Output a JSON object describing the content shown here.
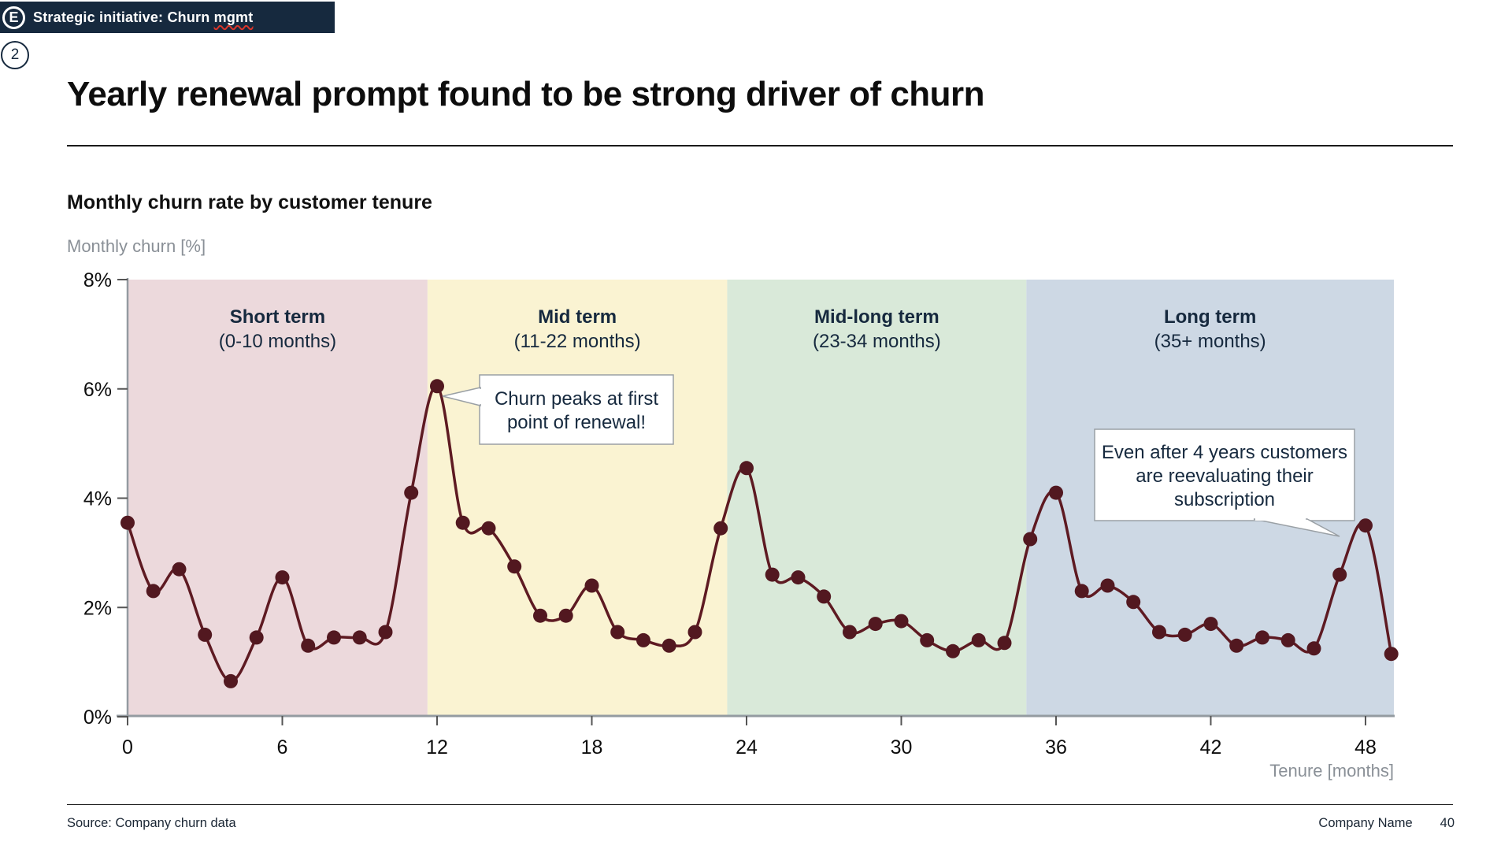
{
  "header": {
    "tab_icon_letter": "E",
    "tab_label_prefix": "Strategic initiative: Churn ",
    "tab_label_misspelled": "mgmt",
    "page_circle": "2"
  },
  "title": "Yearly renewal prompt found to be strong driver of churn",
  "chart_heading": "Monthly churn rate by customer tenure",
  "chart_data": {
    "type": "line",
    "title": "Monthly churn rate by customer tenure",
    "ylabel": "Monthly churn [%]",
    "xlabel": "Tenure [months]",
    "ylim": [
      0,
      8
    ],
    "xlim": [
      0,
      49.1
    ],
    "yticks": [
      0,
      2,
      4,
      6,
      8
    ],
    "ytick_suffix": "%",
    "xticks": [
      0,
      6,
      12,
      18,
      24,
      30,
      36,
      42,
      48
    ],
    "grid": false,
    "legend": false,
    "line_color": "#5e1a22",
    "marker_color": "#521820",
    "series": [
      {
        "name": "Monthly churn rate",
        "x": [
          0,
          1,
          2,
          3,
          4,
          5,
          6,
          7,
          8,
          9,
          10,
          11,
          12,
          13,
          14,
          15,
          16,
          17,
          18,
          19,
          20,
          21,
          22,
          23,
          24,
          25,
          26,
          27,
          28,
          29,
          30,
          31,
          32,
          33,
          34,
          35,
          36,
          37,
          38,
          39,
          40,
          41,
          42,
          43,
          44,
          45,
          46,
          47,
          48,
          49
        ],
        "values": [
          3.55,
          2.3,
          2.7,
          1.5,
          0.65,
          1.45,
          2.55,
          1.3,
          1.45,
          1.45,
          1.55,
          4.1,
          6.05,
          3.55,
          3.45,
          2.75,
          1.85,
          1.85,
          2.4,
          1.55,
          1.4,
          1.3,
          1.55,
          3.45,
          4.55,
          2.6,
          2.55,
          2.2,
          1.55,
          1.7,
          1.75,
          1.4,
          1.2,
          1.4,
          1.35,
          3.25,
          4.1,
          2.3,
          2.4,
          2.1,
          1.55,
          1.5,
          1.7,
          1.3,
          1.45,
          1.4,
          1.25,
          2.6,
          3.5,
          1.15
        ]
      }
    ],
    "regions": [
      {
        "label": "Short term",
        "sublabel": "(0-10 months)",
        "start": 0,
        "end": 11.63,
        "color": "#ecd9dc"
      },
      {
        "label": "Mid term",
        "sublabel": "(11-22 months)",
        "start": 11.63,
        "end": 23.25,
        "color": "#faf3d2"
      },
      {
        "label": "Mid-long term",
        "sublabel": "(23-34 months)",
        "start": 23.25,
        "end": 34.85,
        "color": "#d9e9d9"
      },
      {
        "label": "Long term",
        "sublabel": "(35+ months)",
        "start": 34.85,
        "end": 49.1,
        "color": "#cdd8e4"
      }
    ],
    "region_label_color": "#16293e",
    "annotations": [
      {
        "lines": [
          "Churn peaks at first",
          "point of renewal!"
        ],
        "points_to_month": 12
      },
      {
        "lines": [
          "Even after 4 years customers",
          "are reevaluating their",
          "subscription"
        ],
        "points_to_month": 48
      }
    ]
  },
  "footer": {
    "source": "Source: Company churn data",
    "company": "Company Name",
    "page_number": "40"
  }
}
